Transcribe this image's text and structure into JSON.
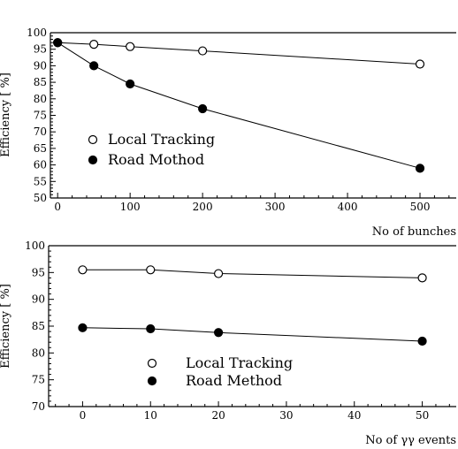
{
  "chart_data": [
    {
      "type": "line",
      "ylabel": "Efficiency [ %]",
      "xlabel": "No of bunches",
      "xlim": [
        -10,
        550
      ],
      "ylim": [
        50,
        100
      ],
      "xticks": [
        0,
        100,
        200,
        300,
        400,
        500
      ],
      "xtick_labels": [
        "0",
        "100",
        "200",
        "300",
        "400",
        "500"
      ],
      "yticks": [
        50,
        55,
        60,
        65,
        70,
        75,
        80,
        85,
        90,
        95,
        100
      ],
      "ytick_labels": [
        "50",
        "55",
        "60",
        "65",
        "70",
        "75",
        "80",
        "85",
        "90",
        "95",
        "100"
      ],
      "legend_position": "bottom-left",
      "series": [
        {
          "name": "Local Tracking",
          "marker": "open-circle",
          "x": [
            0,
            50,
            100,
            200,
            500
          ],
          "y": [
            97,
            96.5,
            95.8,
            94.5,
            90.5
          ]
        },
        {
          "name": "Road Mothod",
          "marker": "filled-circle",
          "x": [
            0,
            50,
            100,
            200,
            500
          ],
          "y": [
            97,
            90,
            84.5,
            77,
            59
          ]
        }
      ]
    },
    {
      "type": "line",
      "ylabel": "Efficiency [ %]",
      "xlabel": "No of γγ events",
      "xlim": [
        -5,
        55
      ],
      "ylim": [
        70,
        100
      ],
      "xticks": [
        0,
        10,
        20,
        30,
        40,
        50
      ],
      "xtick_labels": [
        "0",
        "10",
        "20",
        "30",
        "40",
        "50"
      ],
      "yticks": [
        70,
        75,
        80,
        85,
        90,
        95,
        100
      ],
      "ytick_labels": [
        "70",
        "75",
        "80",
        "85",
        "90",
        "95",
        "100"
      ],
      "legend_position": "bottom-center",
      "series": [
        {
          "name": "Local Tracking",
          "marker": "open-circle",
          "x": [
            0,
            10,
            20,
            50
          ],
          "y": [
            95.5,
            95.5,
            94.8,
            94
          ]
        },
        {
          "name": "Road Method",
          "marker": "filled-circle",
          "x": [
            0,
            10,
            20,
            50
          ],
          "y": [
            84.7,
            84.5,
            83.8,
            82.2
          ]
        }
      ]
    }
  ]
}
